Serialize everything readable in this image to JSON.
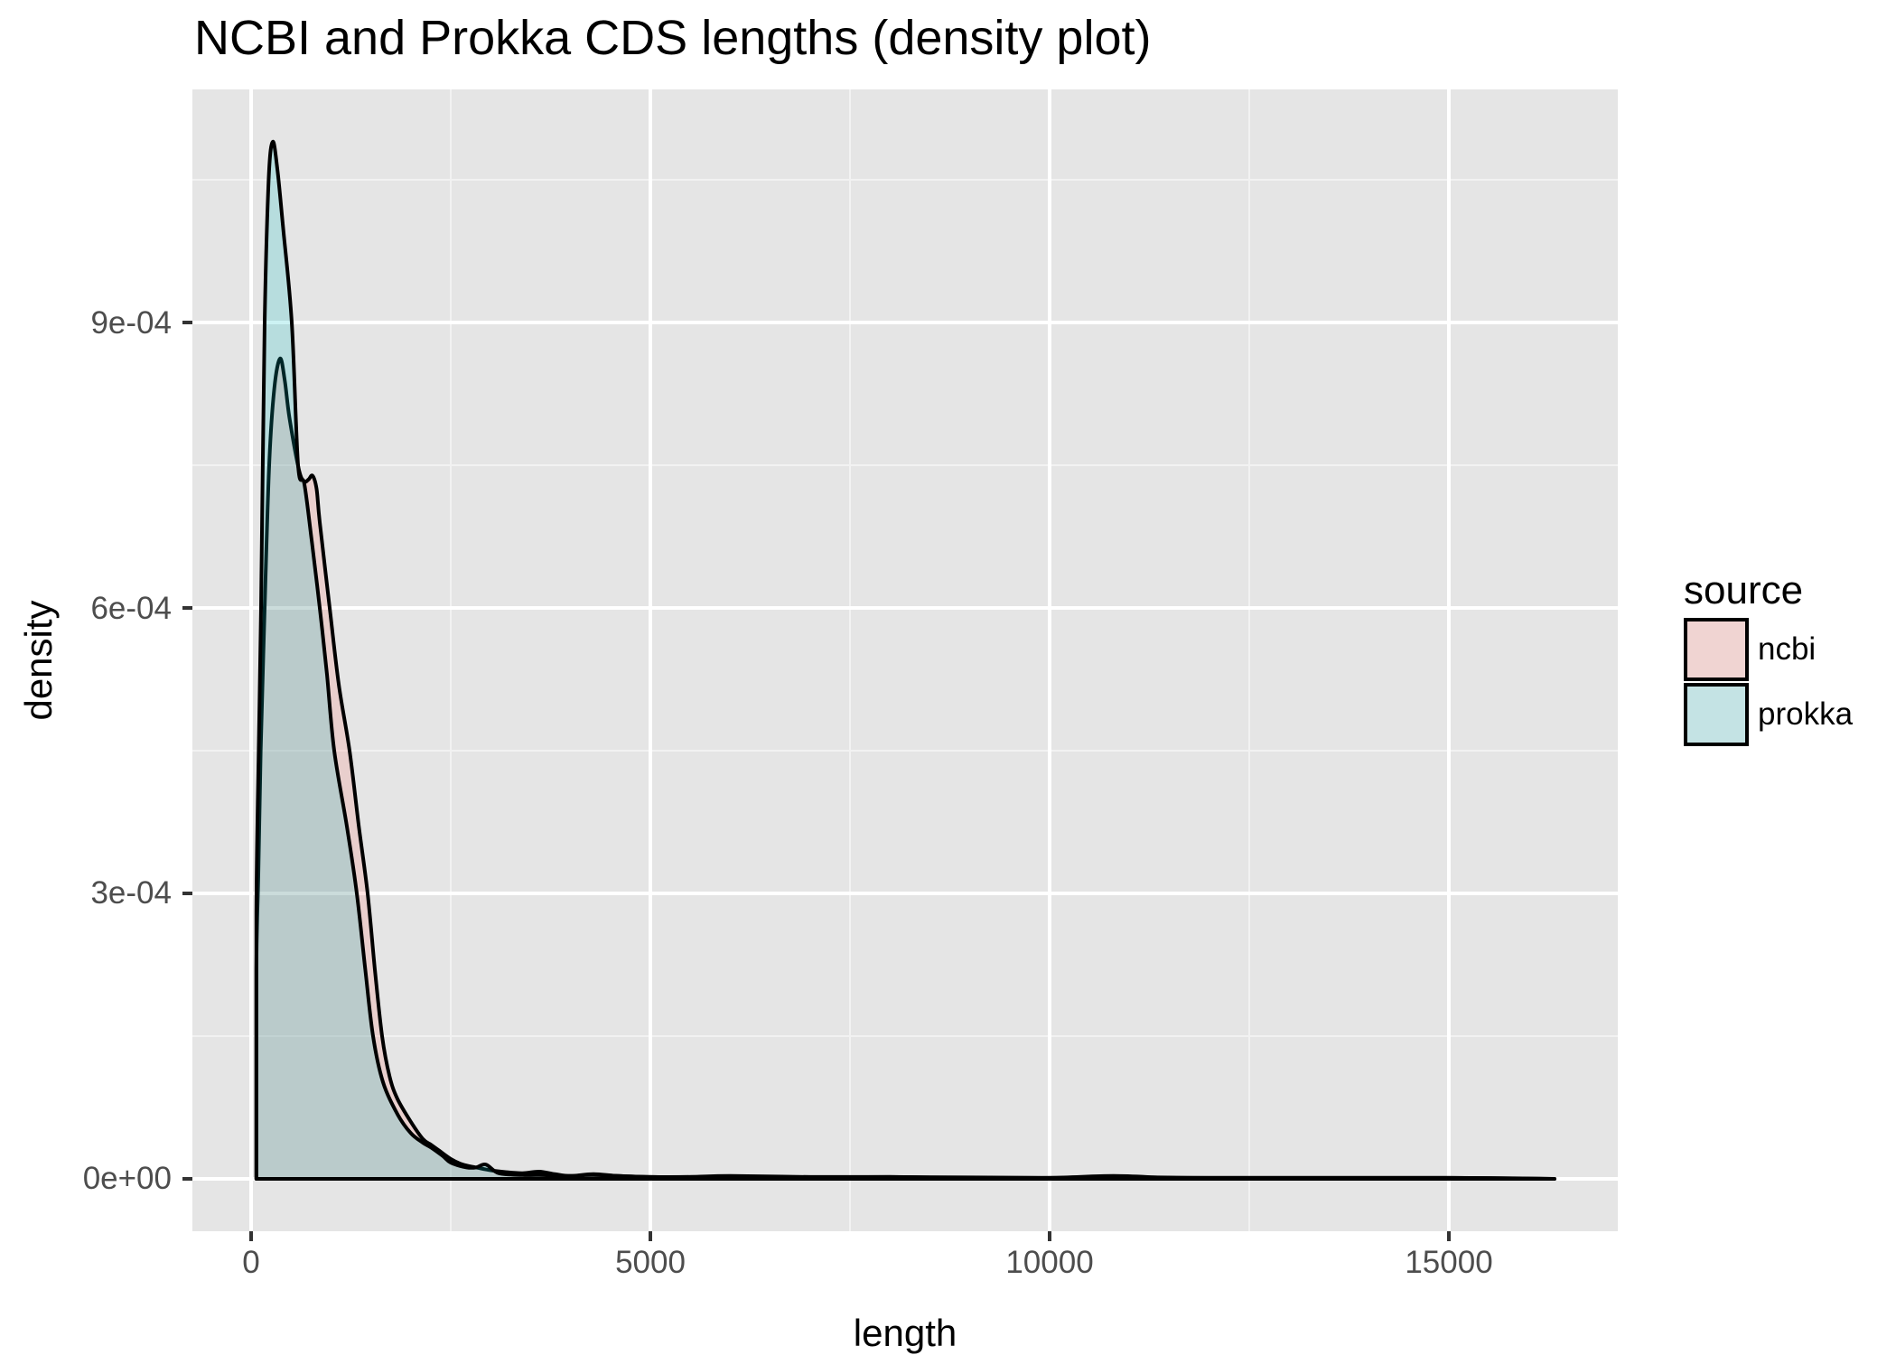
{
  "chart_data": {
    "type": "area",
    "subtype": "density",
    "title": "NCBI and Prokka CDS lengths (density plot)",
    "xlabel": "length",
    "ylabel": "density",
    "xlim": [
      -750,
      17100
    ],
    "ylim": [
      -5.5e-05,
      0.0011446
    ],
    "x_ticks": [
      0,
      5000,
      10000,
      15000
    ],
    "x_tick_labels": [
      "0",
      "5000",
      "10000",
      "15000"
    ],
    "x_minor_ticks": [
      2500,
      7500,
      12500
    ],
    "y_ticks": [
      0,
      0.0003,
      0.0006,
      0.0009
    ],
    "y_tick_labels": [
      "0e+00",
      "3e-04",
      "6e-04",
      "9e-04"
    ],
    "y_minor_ticks": [
      0.00015,
      0.00045,
      0.00075,
      0.00105
    ],
    "grid": true,
    "panel_background": "#e5e5e5",
    "legend": {
      "title": "source",
      "position": "right",
      "entries": [
        "ncbi",
        "prokka"
      ]
    },
    "series": [
      {
        "name": "ncbi",
        "color": "#F8766D",
        "alpha": 0.2,
        "x": [
          66,
          66,
          90,
          120,
          170,
          226,
          290,
          362,
          420,
          480,
          600,
          667,
          720,
          769,
          820,
          860,
          984,
          1097,
          1233,
          1350,
          1459,
          1550,
          1640,
          1733,
          1833,
          2000,
          2150,
          2251,
          2350,
          2500,
          2650,
          2817,
          3000,
          3200,
          3400,
          3609,
          3800,
          4000,
          4287,
          4600,
          5000,
          5500,
          6000,
          7000,
          8000,
          9000,
          10000,
          10800,
          11500,
          12000,
          13500,
          15000,
          16323
        ],
        "y": [
          0,
          0.00022,
          0.00032,
          0.00045,
          0.0006,
          0.00075,
          0.00083,
          0.000862,
          0.00084,
          0.0008,
          0.000745,
          0.000733,
          0.000735,
          0.000739,
          0.000725,
          0.00069,
          0.0006,
          0.00052,
          0.00045,
          0.00037,
          0.0003,
          0.00022,
          0.00015,
          0.000108,
          8.4e-05,
          6e-05,
          4.2e-05,
          3.6e-05,
          3e-05,
          2.1e-05,
          1.5e-05,
          1.2e-05,
          9e-06,
          7e-06,
          6e-06,
          7.6e-06,
          5e-06,
          3e-06,
          5e-06,
          3e-06,
          2e-06,
          2e-06,
          3e-06,
          2e-06,
          2e-06,
          1e-06,
          1e-06,
          3e-06,
          1e-06,
          1e-06,
          1e-06,
          1e-06,
          0
        ]
      },
      {
        "name": "prokka",
        "color": "#00BFC4",
        "alpha": 0.2,
        "x": [
          66,
          66,
          95,
          124,
          170,
          220,
          271,
          330,
          400,
          509,
          588,
          667,
          760,
          860,
          950,
          1041,
          1200,
          1324,
          1430,
          1527,
          1650,
          1833,
          2000,
          2150,
          2251,
          2400,
          2500,
          2700,
          2817,
          2940,
          3100,
          3400,
          3609,
          4000,
          4287,
          5000,
          6000,
          7000,
          8000,
          10000,
          10800,
          12000,
          15000,
          16323
        ],
        "y": [
          0,
          0.00028,
          0.00045,
          0.0006,
          0.0009,
          0.00105,
          0.00109,
          0.00106,
          0.001,
          0.0009,
          0.00075,
          0.00073,
          0.00067,
          0.0006,
          0.00053,
          0.00045,
          0.00037,
          0.0003,
          0.00022,
          0.00015,
          0.000102,
          6.8e-05,
          4.8e-05,
          3.8e-05,
          3.3e-05,
          2.4e-05,
          1.7e-05,
          1.2e-05,
          1.2e-05,
          1.5e-05,
          6e-06,
          4e-06,
          4e-06,
          3e-06,
          4e-06,
          2e-06,
          2e-06,
          1e-06,
          2e-06,
          1e-06,
          2e-06,
          1e-06,
          1e-06,
          0
        ]
      }
    ]
  },
  "labels": {
    "title": "NCBI and Prokka CDS lengths (density plot)",
    "xlabel": "length",
    "ylabel": "density",
    "legend_title": "source",
    "legend_ncbi": "ncbi",
    "legend_prokka": "prokka",
    "xticks": [
      "0",
      "5000",
      "10000",
      "15000"
    ],
    "yticks": [
      "0e+00",
      "3e-04",
      "6e-04",
      "9e-04"
    ]
  },
  "colors": {
    "ncbi_key_fill": "#f0d4d2",
    "prokka_key_fill": "#c4e3e4",
    "panel_bg": "#e5e5e5",
    "grid": "#ffffff",
    "tick_text": "#4d4d4d"
  }
}
